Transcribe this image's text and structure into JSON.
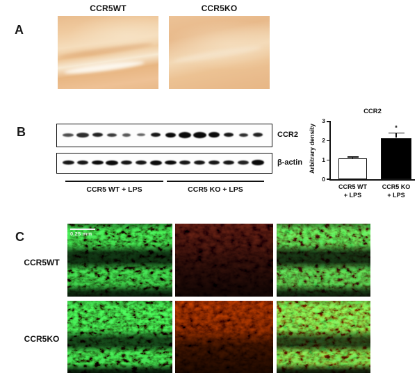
{
  "panel_a": {
    "letter": "A",
    "images": [
      {
        "label": "CCR5WT",
        "channel": "ihc-brown"
      },
      {
        "label": "CCR5KO",
        "channel": "ihc-brown"
      }
    ]
  },
  "panel_b": {
    "letter": "B",
    "blots": [
      {
        "label": "CCR2",
        "bands": [
          {
            "w": 16,
            "h": 5,
            "o": 0.72
          },
          {
            "w": 18,
            "h": 7,
            "o": 0.85
          },
          {
            "w": 15,
            "h": 6,
            "o": 0.9
          },
          {
            "w": 14,
            "h": 5,
            "o": 0.8
          },
          {
            "w": 12,
            "h": 5,
            "o": 0.68
          },
          {
            "w": 12,
            "h": 4,
            "o": 0.62
          },
          {
            "w": 14,
            "h": 6,
            "o": 0.95
          },
          {
            "w": 15,
            "h": 7,
            "o": 1
          },
          {
            "w": 18,
            "h": 9,
            "o": 1
          },
          {
            "w": 19,
            "h": 9,
            "o": 1
          },
          {
            "w": 16,
            "h": 8,
            "o": 1
          },
          {
            "w": 14,
            "h": 6,
            "o": 0.95
          },
          {
            "w": 13,
            "h": 5,
            "o": 0.85
          },
          {
            "w": 14,
            "h": 6,
            "o": 0.9
          }
        ]
      },
      {
        "label": "β-actin",
        "bands": [
          {
            "w": 17,
            "h": 6,
            "o": 0.95
          },
          {
            "w": 16,
            "h": 6,
            "o": 0.95
          },
          {
            "w": 17,
            "h": 6,
            "o": 1
          },
          {
            "w": 18,
            "h": 7,
            "o": 1
          },
          {
            "w": 16,
            "h": 6,
            "o": 0.95
          },
          {
            "w": 16,
            "h": 6,
            "o": 0.95
          },
          {
            "w": 17,
            "h": 7,
            "o": 1
          },
          {
            "w": 17,
            "h": 6,
            "o": 1
          },
          {
            "w": 16,
            "h": 6,
            "o": 0.95
          },
          {
            "w": 16,
            "h": 6,
            "o": 0.95
          },
          {
            "w": 16,
            "h": 6,
            "o": 0.95
          },
          {
            "w": 16,
            "h": 6,
            "o": 0.95
          },
          {
            "w": 16,
            "h": 6,
            "o": 0.9
          },
          {
            "w": 18,
            "h": 8,
            "o": 1
          }
        ]
      }
    ],
    "groups": [
      "CCR5 WT + LPS",
      "CCR5 KO + LPS"
    ]
  },
  "chart_data": {
    "type": "bar",
    "title": "CCR2",
    "ylabel": "Arbitrary density",
    "xlabel": "",
    "ylim": [
      0,
      3
    ],
    "yticks": [
      0,
      1,
      2,
      3
    ],
    "grid": false,
    "legend": "none",
    "categories": [
      [
        "CCR5 WT",
        "+ LPS"
      ],
      [
        "CCR5 KO",
        "+ LPS"
      ]
    ],
    "values": [
      1.1,
      2.15
    ],
    "errors": [
      0.07,
      0.25
    ],
    "bar_colors": [
      "#ffffff",
      "#000000"
    ],
    "significance": [
      {
        "index": 1,
        "text": "*"
      }
    ]
  },
  "panel_c": {
    "letter": "C",
    "row_labels": [
      "CCR5WT",
      "CCR5KO"
    ],
    "scale_bar_label": "0.25 mm",
    "channels": [
      "green-channel",
      "red-channel",
      "merge-channel"
    ]
  }
}
